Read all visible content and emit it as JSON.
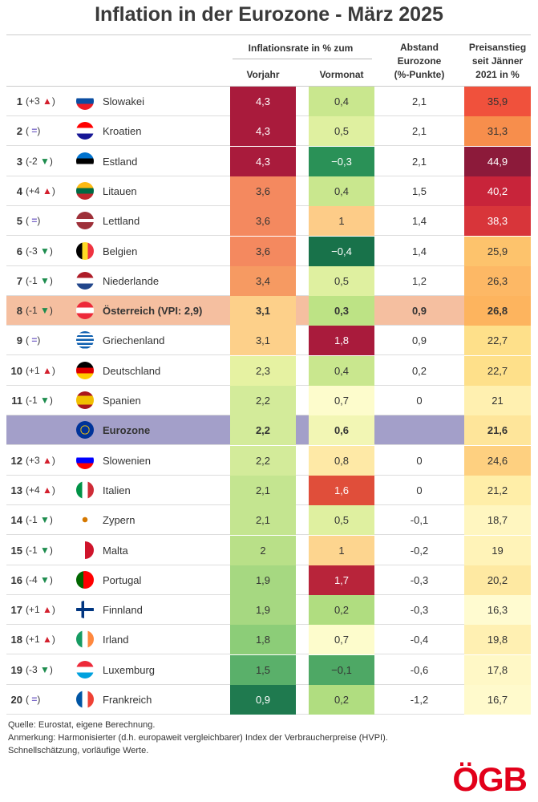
{
  "title": "Inflation in der Eurozone - März 2025",
  "chart_data": {
    "type": "table",
    "title": "Inflation in der Eurozone - März 2025",
    "group_header": "Inflationsrate in % zum",
    "columns": [
      "Vorjahr",
      "Vormonat",
      "Abstand Eurozone (%-Punkte)",
      "Preisanstieg seit Jänner 2021 in %"
    ],
    "column_lines": {
      "abstand": [
        "Abstand",
        "Eurozone",
        "(%-Punkte)"
      ],
      "preis": [
        "Preisanstieg",
        "seit Jänner",
        "2021 in %"
      ]
    },
    "rows": [
      {
        "rank": "1",
        "change": "+3",
        "trend": "up",
        "flag": "sk",
        "country": "Slowakei",
        "values": [
          "4,3",
          "0,4",
          "2,1",
          "35,9"
        ],
        "colors": [
          "#a91b3c",
          "#c9e78e",
          "",
          "#f0513c"
        ]
      },
      {
        "rank": "2",
        "change": "",
        "trend": "same",
        "flag": "hr",
        "country": "Kroatien",
        "values": [
          "4,3",
          "0,5",
          "2,1",
          "31,3"
        ],
        "colors": [
          "#a91b3c",
          "#dff0a0",
          "",
          "#f78e4c"
        ]
      },
      {
        "rank": "3",
        "change": "-2",
        "trend": "down",
        "flag": "ee",
        "country": "Estland",
        "values": [
          "4,3",
          "−0,3",
          "2,1",
          "44,9"
        ],
        "colors": [
          "#a91b3c",
          "#2a9157",
          "",
          "#8c1a3a"
        ]
      },
      {
        "rank": "4",
        "change": "+4",
        "trend": "up",
        "flag": "lt",
        "country": "Litauen",
        "values": [
          "3,6",
          "0,4",
          "1,5",
          "40,2"
        ],
        "colors": [
          "#f4895f",
          "#c9e78e",
          "",
          "#c8243a"
        ]
      },
      {
        "rank": "5",
        "change": "",
        "trend": "same",
        "flag": "lv",
        "country": "Lettland",
        "values": [
          "3,6",
          "1",
          "1,4",
          "38,3"
        ],
        "colors": [
          "#f4895f",
          "#fdcc88",
          "",
          "#d8353a"
        ]
      },
      {
        "rank": "6",
        "change": "-3",
        "trend": "down",
        "flag": "be",
        "country": "Belgien",
        "values": [
          "3,6",
          "−0,4",
          "1,4",
          "25,9"
        ],
        "colors": [
          "#f4895f",
          "#18724a",
          "",
          "#fdc36c"
        ]
      },
      {
        "rank": "7",
        "change": "-1",
        "trend": "down",
        "flag": "nl",
        "country": "Niederlande",
        "values": [
          "3,4",
          "0,5",
          "1,2",
          "26,3"
        ],
        "colors": [
          "#f69a62",
          "#dff0a0",
          "",
          "#fdb865"
        ]
      },
      {
        "rank": "8",
        "change": "-1",
        "trend": "down",
        "flag": "at",
        "country": "Österreich (VPI: 2,9)",
        "values": [
          "3,1",
          "0,3",
          "0,9",
          "26,8"
        ],
        "colors": [
          "#fdd08a",
          "#bde385",
          "",
          "#fdb45e"
        ],
        "highlight": "#f5bfa0"
      },
      {
        "rank": "9",
        "change": "",
        "trend": "same",
        "flag": "gr",
        "country": "Griechenland",
        "values": [
          "3,1",
          "1,8",
          "0,9",
          "22,7"
        ],
        "colors": [
          "#fdd08a",
          "#a91b3c",
          "",
          "#fee08a"
        ]
      },
      {
        "rank": "10",
        "change": "+1",
        "trend": "up",
        "flag": "de",
        "country": "Deutschland",
        "values": [
          "2,3",
          "0,4",
          "0,2",
          "22,7"
        ],
        "colors": [
          "#e6f2a2",
          "#c9e78e",
          "",
          "#fee08a"
        ]
      },
      {
        "rank": "11",
        "change": "-1",
        "trend": "down",
        "flag": "es",
        "country": "Spanien",
        "values": [
          "2,2",
          "0,7",
          "0",
          "21"
        ],
        "colors": [
          "#d3eb9a",
          "#fdfccc",
          "",
          "#fff0b0"
        ]
      },
      {
        "rank": "",
        "change": "",
        "trend": "",
        "flag": "eu",
        "country": "Eurozone",
        "values": [
          "2,2",
          "0,6",
          "",
          "21,6"
        ],
        "colors": [
          "#d3eb9a",
          "#f2f6b4",
          "",
          "#fee59a"
        ],
        "highlight": "#a39fc9"
      },
      {
        "rank": "12",
        "change": "+3",
        "trend": "up",
        "flag": "si",
        "country": "Slowenien",
        "values": [
          "2,2",
          "0,8",
          "0",
          "24,6"
        ],
        "colors": [
          "#d3eb9a",
          "#fee9a6",
          "",
          "#fed080"
        ]
      },
      {
        "rank": "13",
        "change": "+4",
        "trend": "up",
        "flag": "it",
        "country": "Italien",
        "values": [
          "2,1",
          "1,6",
          "0",
          "21,2"
        ],
        "colors": [
          "#c4e590",
          "#e04e3a",
          "",
          "#ffeea8"
        ]
      },
      {
        "rank": "14",
        "change": "-1",
        "trend": "down",
        "flag": "cy",
        "country": "Zypern",
        "values": [
          "2,1",
          "0,5",
          "-0,1",
          "18,7"
        ],
        "colors": [
          "#c4e590",
          "#dff0a0",
          "",
          "#fff6c0"
        ]
      },
      {
        "rank": "15",
        "change": "-1",
        "trend": "down",
        "flag": "mt",
        "country": "Malta",
        "values": [
          "2",
          "1",
          "-0,2",
          "19"
        ],
        "colors": [
          "#b9e088",
          "#fdd58f",
          "",
          "#fff3b8"
        ]
      },
      {
        "rank": "16",
        "change": "-4",
        "trend": "down",
        "flag": "pt",
        "country": "Portugal",
        "values": [
          "1,9",
          "1,7",
          "-0,3",
          "20,2"
        ],
        "colors": [
          "#a6d881",
          "#b8243a",
          "",
          "#fee9a2"
        ]
      },
      {
        "rank": "17",
        "change": "+1",
        "trend": "up",
        "flag": "fi",
        "country": "Finnland",
        "values": [
          "1,9",
          "0,2",
          "-0,3",
          "16,3"
        ],
        "colors": [
          "#a6d881",
          "#b0dd80",
          "",
          "#fffbd0"
        ]
      },
      {
        "rank": "18",
        "change": "+1",
        "trend": "up",
        "flag": "ie",
        "country": "Irland",
        "values": [
          "1,8",
          "0,7",
          "-0,4",
          "19,8"
        ],
        "colors": [
          "#8ccd78",
          "#fdfccc",
          "",
          "#fff0b2"
        ]
      },
      {
        "rank": "19",
        "change": "-3",
        "trend": "down",
        "flag": "lu",
        "country": "Luxemburg",
        "values": [
          "1,5",
          "−0,1",
          "-0,6",
          "17,8"
        ],
        "colors": [
          "#5ab06a",
          "#4ea865",
          "",
          "#fff8c6"
        ]
      },
      {
        "rank": "20",
        "change": "",
        "trend": "same",
        "flag": "fr",
        "country": "Frankreich",
        "values": [
          "0,9",
          "0,2",
          "-1,2",
          "16,7"
        ],
        "colors": [
          "#1f7a4f",
          "#b0dd80",
          "",
          "#fffacc"
        ]
      }
    ]
  },
  "notes": [
    "Quelle: Eurostat, eigene Berechnung.",
    "Anmerkung: Harmonisierter (d.h. europaweit vergleichbarer) Index der Verbraucherpreise (HVPI).",
    "Schnellschätzung, vorläufige Werte."
  ],
  "logo": "ÖGB"
}
